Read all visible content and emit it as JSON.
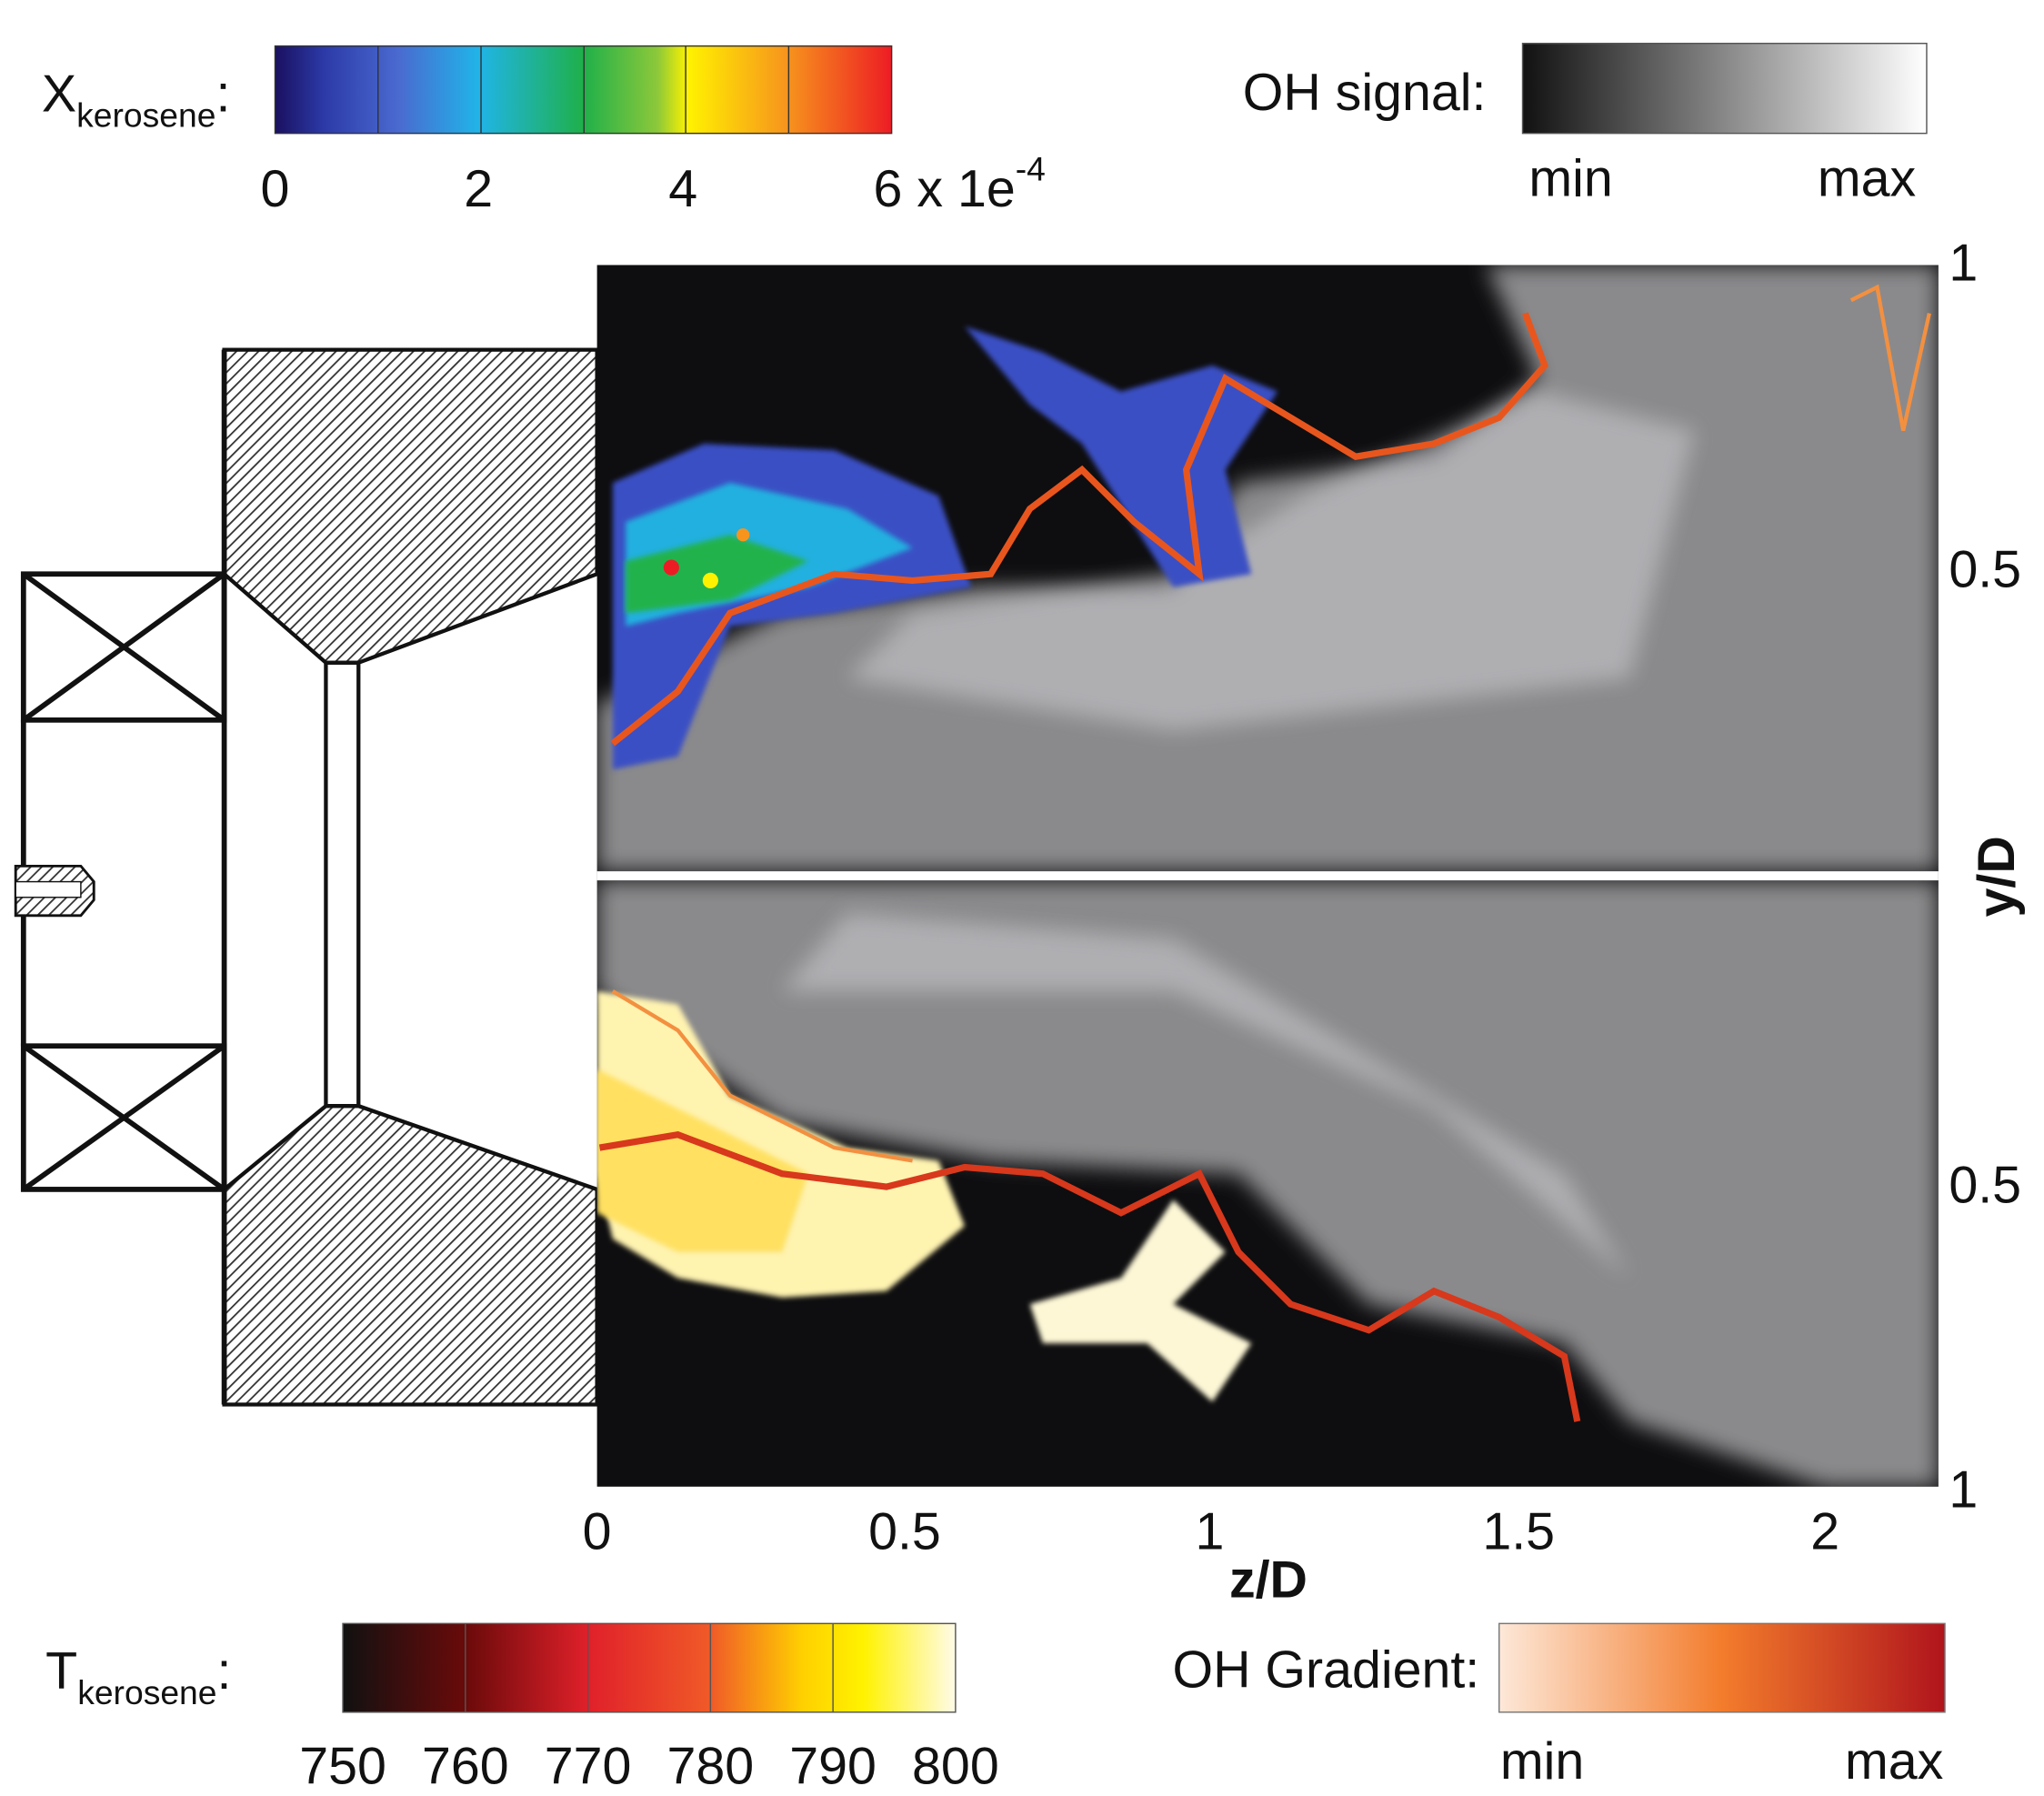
{
  "colorbars": {
    "x_kerosene": {
      "symbol": "X",
      "subscript": "kerosene",
      "suffix": ":",
      "ticks": [
        "0",
        "2",
        "4",
        "6 x 1e"
      ],
      "exponent": "-4"
    },
    "oh_signal": {
      "label": "OH signal:",
      "min": "min",
      "max": "max"
    },
    "t_kerosene": {
      "symbol": "T",
      "subscript": "kerosene",
      "suffix": ":",
      "ticks": [
        "750",
        "760",
        "770",
        "780",
        "790",
        "800"
      ]
    },
    "oh_gradient": {
      "label": "OH Gradient:",
      "min": "min",
      "max": "max"
    }
  },
  "axes": {
    "x_label": "z/D",
    "x_ticks": [
      "0",
      "0.5",
      "1",
      "1.5",
      "2"
    ],
    "y_label": "y/D",
    "y_ticks": [
      "1",
      "0.5",
      "0.5",
      "1"
    ]
  }
}
